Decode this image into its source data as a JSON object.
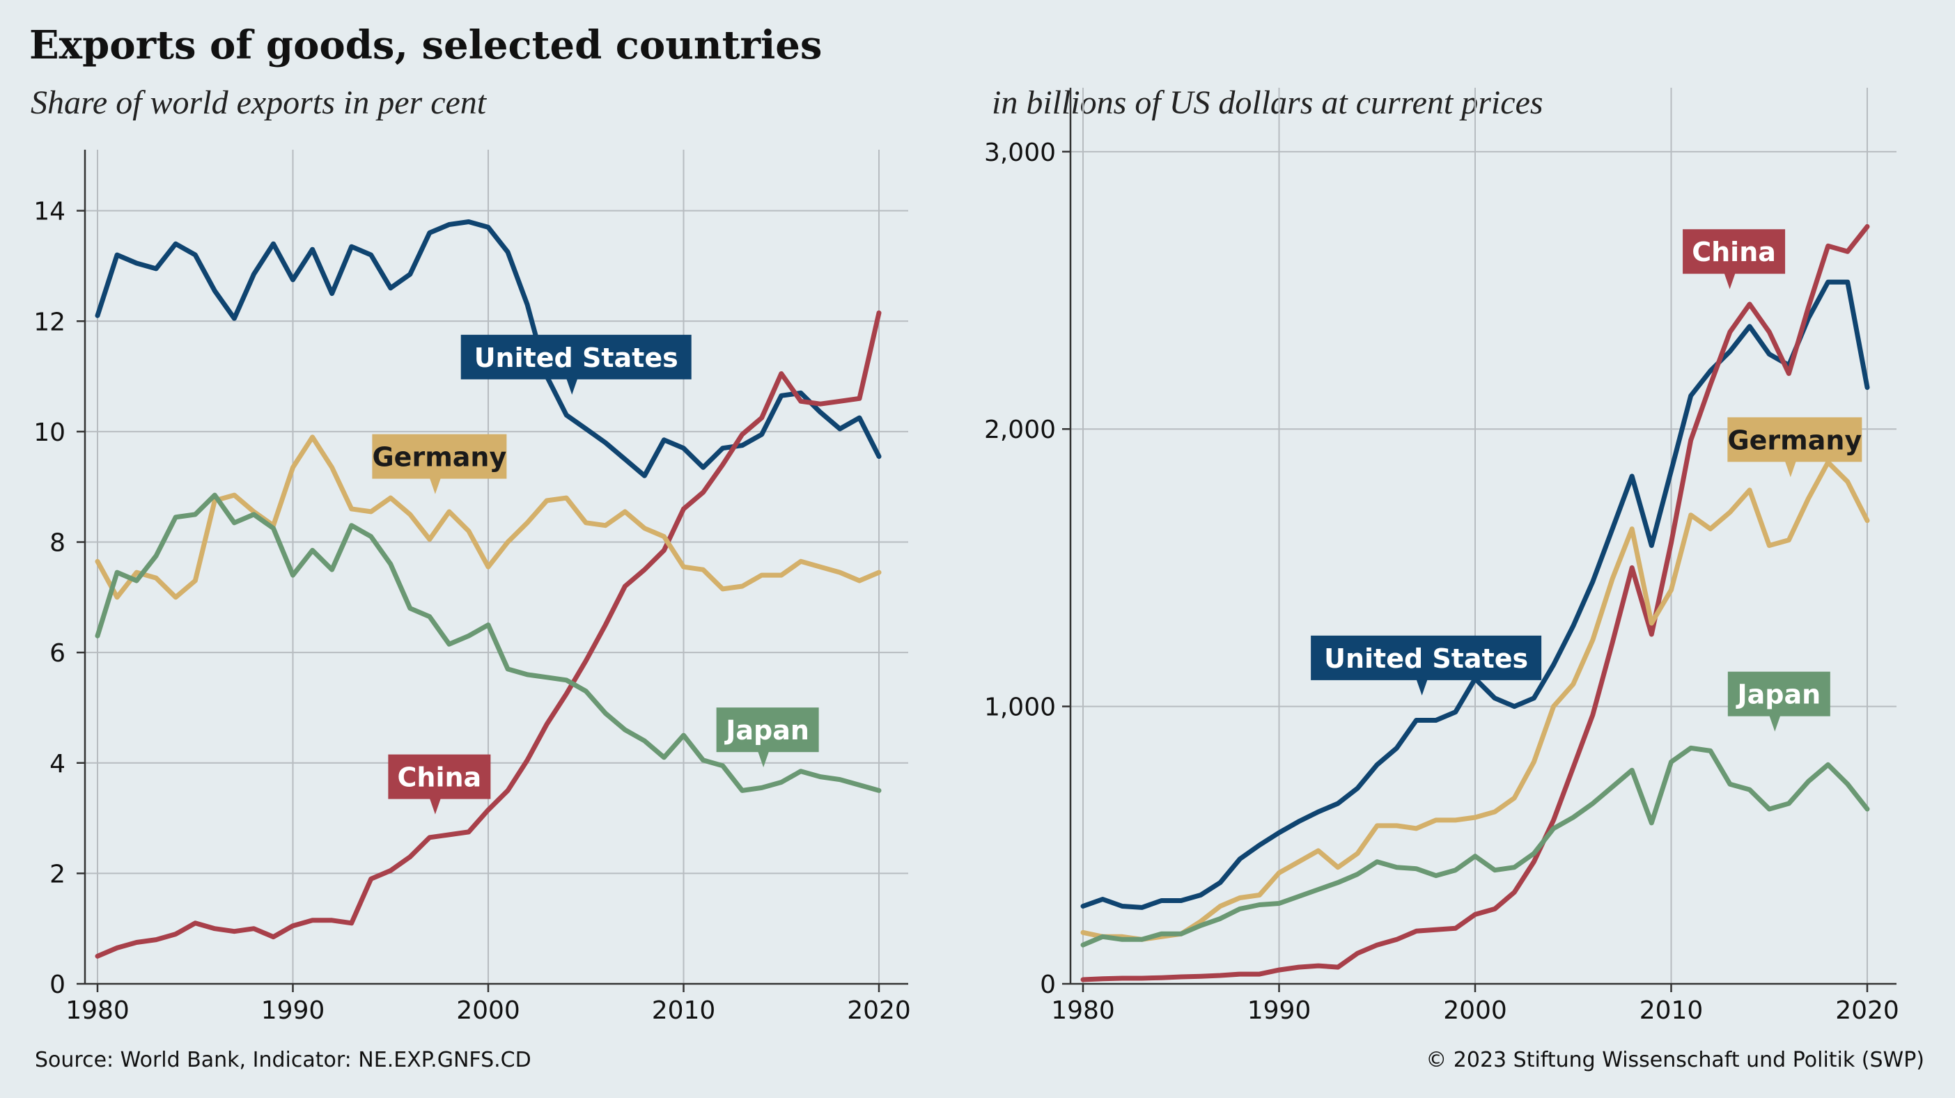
{
  "title": "Exports of goods, selected countries",
  "source": "Source: World Bank, Indicator: NE.EXP.GNFS.CD",
  "copyright": "© 2023 Stiftung Wissenschaft und Politik (SWP)",
  "colors": {
    "background": "#e5ecef",
    "united_states": "#0f4470",
    "china": "#a8404a",
    "germany": "#d4b06a",
    "japan": "#6a9873",
    "grid": "#b7bcc0",
    "axis": "#333333"
  },
  "chart_data": [
    {
      "type": "line",
      "subtitle": "Share of world exports in per cent",
      "xlim": [
        1980,
        2020
      ],
      "ylim": [
        0,
        14.5
      ],
      "x_ticks": [
        1980,
        1990,
        2000,
        2010,
        2020
      ],
      "y_ticks": [
        0,
        2,
        4,
        6,
        8,
        10,
        12,
        14
      ],
      "y_tick_labels": [
        "0",
        "2",
        "4",
        "6",
        "8",
        "10",
        "12",
        "14"
      ],
      "grid": true,
      "x": [
        1980,
        1981,
        1982,
        1983,
        1984,
        1985,
        1986,
        1987,
        1988,
        1989,
        1990,
        1991,
        1992,
        1993,
        1994,
        1995,
        1996,
        1997,
        1998,
        1999,
        2000,
        2001,
        2002,
        2003,
        2004,
        2005,
        2006,
        2007,
        2008,
        2009,
        2010,
        2011,
        2012,
        2013,
        2014,
        2015,
        2016,
        2017,
        2018,
        2019,
        2020
      ],
      "series": [
        {
          "name": "United States",
          "color_key": "united_states",
          "values": [
            12.1,
            13.2,
            13.05,
            12.95,
            13.4,
            13.2,
            12.55,
            12.05,
            12.85,
            13.4,
            12.75,
            13.3,
            12.5,
            13.35,
            13.2,
            12.6,
            12.85,
            13.6,
            13.75,
            13.8,
            13.7,
            13.25,
            12.3,
            11.0,
            10.3,
            10.05,
            9.8,
            9.5,
            9.2,
            9.85,
            9.7,
            9.35,
            9.7,
            9.75,
            9.95,
            10.65,
            10.7,
            10.35,
            10.05,
            10.25,
            9.55
          ],
          "label_pos": [
            2004.5,
            11.35
          ]
        },
        {
          "name": "China",
          "color_key": "china",
          "values": [
            0.5,
            0.65,
            0.75,
            0.8,
            0.9,
            1.1,
            1.0,
            0.95,
            1.0,
            0.85,
            1.05,
            1.15,
            1.15,
            1.1,
            1.9,
            2.05,
            2.3,
            2.65,
            2.7,
            2.75,
            3.15,
            3.5,
            4.05,
            4.7,
            5.25,
            5.85,
            6.5,
            7.2,
            7.5,
            7.85,
            8.6,
            8.9,
            9.4,
            9.95,
            10.25,
            11.05,
            10.55,
            10.5,
            10.55,
            10.6,
            12.15
          ],
          "label_pos": [
            1997.5,
            3.75
          ]
        },
        {
          "name": "Germany",
          "color_key": "germany",
          "values": [
            7.65,
            7.0,
            7.45,
            7.35,
            7.0,
            7.3,
            8.75,
            8.85,
            8.55,
            8.3,
            9.35,
            9.9,
            9.35,
            8.6,
            8.55,
            8.8,
            8.5,
            8.05,
            8.55,
            8.2,
            7.55,
            8.0,
            8.35,
            8.75,
            8.8,
            8.35,
            8.3,
            8.55,
            8.25,
            8.1,
            7.55,
            7.5,
            7.15,
            7.2,
            7.4,
            7.4,
            7.65,
            7.55,
            7.45,
            7.3,
            7.45
          ],
          "label_pos": [
            1997.5,
            9.55
          ]
        },
        {
          "name": "Japan",
          "color_key": "japan",
          "values": [
            6.3,
            7.45,
            7.3,
            7.75,
            8.45,
            8.5,
            8.85,
            8.35,
            8.5,
            8.25,
            7.4,
            7.85,
            7.5,
            8.3,
            8.1,
            7.6,
            6.8,
            6.65,
            6.15,
            6.3,
            6.5,
            5.7,
            5.6,
            5.55,
            5.5,
            5.3,
            4.9,
            4.6,
            4.4,
            4.1,
            4.5,
            4.05,
            3.95,
            3.5,
            3.55,
            3.65,
            3.85,
            3.75,
            3.7,
            3.6,
            3.5
          ],
          "label_pos": [
            2014.3,
            4.6
          ]
        }
      ]
    },
    {
      "type": "line",
      "subtitle": "in billions of US dollars at current prices",
      "xlim": [
        1980,
        2020
      ],
      "ylim": [
        0,
        3110
      ],
      "x_ticks": [
        1980,
        1990,
        2000,
        2010,
        2020
      ],
      "y_ticks": [
        0,
        1000,
        2000,
        3000
      ],
      "y_tick_labels": [
        "0",
        "1,000",
        "2,000",
        "3,000"
      ],
      "grid": true,
      "x": [
        1980,
        1981,
        1982,
        1983,
        1984,
        1985,
        1986,
        1987,
        1988,
        1989,
        1990,
        1991,
        1992,
        1993,
        1994,
        1995,
        1996,
        1997,
        1998,
        1999,
        2000,
        2001,
        2002,
        2003,
        2004,
        2005,
        2006,
        2007,
        2008,
        2009,
        2010,
        2011,
        2012,
        2013,
        2014,
        2015,
        2016,
        2017,
        2018,
        2019,
        2020
      ],
      "series": [
        {
          "name": "United States",
          "color_key": "united_states",
          "values": [
            280,
            305,
            280,
            275,
            300,
            300,
            320,
            365,
            450,
            500,
            545,
            585,
            620,
            650,
            705,
            790,
            850,
            950,
            950,
            980,
            1100,
            1030,
            1000,
            1030,
            1150,
            1290,
            1450,
            1640,
            1830,
            1580,
            1850,
            2120,
            2210,
            2280,
            2370,
            2270,
            2230,
            2400,
            2530,
            2530,
            2150
          ],
          "label_pos": [
            1997.5,
            1175
          ]
        },
        {
          "name": "China",
          "color_key": "china",
          "values": [
            15,
            18,
            20,
            20,
            22,
            25,
            27,
            30,
            35,
            35,
            50,
            60,
            65,
            60,
            110,
            140,
            160,
            190,
            195,
            200,
            250,
            270,
            330,
            440,
            590,
            780,
            970,
            1230,
            1500,
            1260,
            1590,
            1960,
            2160,
            2350,
            2450,
            2350,
            2200,
            2440,
            2660,
            2640,
            2730
          ],
          "label_pos": [
            2013.2,
            2640
          ]
        },
        {
          "name": "Germany",
          "color_key": "germany",
          "values": [
            185,
            170,
            170,
            160,
            170,
            180,
            225,
            280,
            310,
            320,
            400,
            440,
            480,
            420,
            470,
            570,
            570,
            560,
            590,
            590,
            600,
            620,
            670,
            800,
            1000,
            1080,
            1240,
            1460,
            1640,
            1300,
            1420,
            1690,
            1640,
            1700,
            1780,
            1580,
            1600,
            1750,
            1880,
            1810,
            1670
          ],
          "label_pos": [
            2016.3,
            1962
          ]
        },
        {
          "name": "Japan",
          "color_key": "japan",
          "values": [
            140,
            170,
            160,
            160,
            180,
            180,
            210,
            235,
            270,
            285,
            290,
            315,
            340,
            365,
            395,
            440,
            420,
            415,
            390,
            410,
            460,
            410,
            420,
            470,
            560,
            600,
            650,
            710,
            770,
            580,
            800,
            850,
            840,
            720,
            700,
            630,
            650,
            730,
            790,
            720,
            630
          ],
          "label_pos": [
            2015.5,
            1045
          ]
        }
      ]
    }
  ]
}
